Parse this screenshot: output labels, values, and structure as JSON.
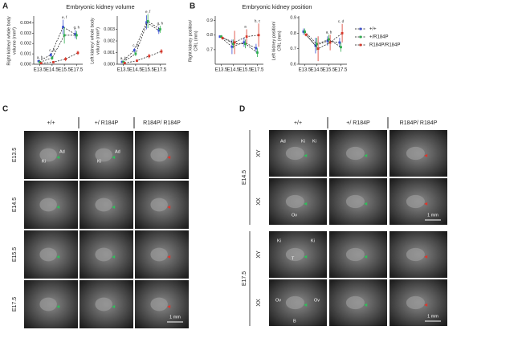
{
  "panel_labels": [
    "A",
    "B",
    "C",
    "D"
  ],
  "section_titles": [
    "Embryonic kidney volume",
    "Embryonic kidney position"
  ],
  "legend": [
    {
      "name": "+/+",
      "color": "#3b4fd1"
    },
    {
      "name": "+/R184P",
      "color": "#2fae4f"
    },
    {
      "name": "R184P/R184P",
      "color": "#d8372a"
    }
  ],
  "chart_data": [
    {
      "type": "line",
      "ylabel": [
        "Right kidney/ whole body",
        "volume (mm³)"
      ],
      "categories": [
        "E13.5",
        "E14.5",
        "E15.5",
        "E17.5"
      ],
      "ylim": [
        0,
        0.0045
      ],
      "yticks": [
        {
          "value": 0,
          "label": "0.000"
        },
        {
          "value": 0.001,
          "label": "0.001"
        },
        {
          "value": 0.002,
          "label": "0.002"
        },
        {
          "value": 0.003,
          "label": "0.003"
        },
        {
          "value": 0.004,
          "label": "0.004"
        }
      ],
      "series": [
        {
          "color": "#3b4fd1",
          "values": [
            0.0003,
            0.0009,
            0.0036,
            0.0029
          ],
          "errors": [
            0.0001,
            0.0002,
            0.0007,
            0.0004
          ]
        },
        {
          "color": "#2fae4f",
          "values": [
            0.0002,
            0.0006,
            0.0028,
            0.0028
          ],
          "errors": [
            0.0001,
            0.0002,
            0.0008,
            0.0004
          ]
        },
        {
          "color": "#d8372a",
          "values": [
            0.0001,
            0.0002,
            0.0005,
            0.0011
          ],
          "errors": [
            5e-05,
            0.0001,
            0.0002,
            0.0002
          ]
        }
      ],
      "annotations": [
        "a, b",
        "c, d",
        "e, f",
        "g, h"
      ]
    },
    {
      "type": "line",
      "ylabel": [
        "Left kidney/ whole body",
        "volume (mm³)"
      ],
      "categories": [
        "E13.5",
        "E14.5",
        "E15.5",
        "E17.5"
      ],
      "ylim": [
        0,
        0.004
      ],
      "yticks": [
        {
          "value": 0,
          "label": "0.000"
        },
        {
          "value": 0.001,
          "label": "0.001"
        },
        {
          "value": 0.002,
          "label": "0.002"
        },
        {
          "value": 0.003,
          "label": "0.003"
        }
      ],
      "series": [
        {
          "color": "#3b4fd1",
          "values": [
            0.0002,
            0.0012,
            0.0036,
            0.0029
          ],
          "errors": [
            0.0001,
            0.0002,
            0.0006,
            0.0003
          ]
        },
        {
          "color": "#2fae4f",
          "values": [
            0.0002,
            0.0009,
            0.0037,
            0.003
          ],
          "errors": [
            0.0001,
            0.0002,
            0.0006,
            0.0003
          ]
        },
        {
          "color": "#d8372a",
          "values": [
            0.0001,
            0.0003,
            0.0007,
            0.0011
          ],
          "errors": [
            5e-05,
            0.0001,
            0.0002,
            0.0002
          ]
        }
      ],
      "annotations": [
        "a, b",
        "c, d",
        "e, f",
        "g, h"
      ]
    },
    {
      "type": "line",
      "ylabel": [
        "Right kidney position/",
        "CRL (mm)"
      ],
      "categories": [
        "E13.5",
        "E14.5",
        "E15.5",
        "E17.5"
      ],
      "ylim": [
        0.6,
        0.92
      ],
      "yticks": [
        0.7,
        0.8,
        0.9
      ],
      "series": [
        {
          "color": "#3b4fd1",
          "values": [
            0.79,
            0.72,
            0.75,
            0.71
          ],
          "errors": [
            0.01,
            0.05,
            0.03,
            0.03
          ]
        },
        {
          "color": "#2fae4f",
          "values": [
            0.79,
            0.74,
            0.74,
            0.68
          ],
          "errors": [
            0.01,
            0.03,
            0.03,
            0.03
          ]
        },
        {
          "color": "#d8372a",
          "values": [
            0.78,
            0.75,
            0.79,
            0.8
          ],
          "errors": [
            0.01,
            0.08,
            0.05,
            0.08
          ]
        }
      ],
      "annotations": [
        null,
        null,
        "a",
        "b, c"
      ]
    },
    {
      "type": "line",
      "ylabel": [
        "Left kidney position/",
        "CRL (mm)"
      ],
      "categories": [
        "E13.5",
        "E14.5",
        "E15.5",
        "E17.5"
      ],
      "ylim": [
        0.6,
        0.9
      ],
      "yticks": [
        0.6,
        0.7,
        0.8,
        0.9
      ],
      "series": [
        {
          "color": "#3b4fd1",
          "values": [
            0.81,
            0.72,
            0.75,
            0.74
          ],
          "errors": [
            0.02,
            0.05,
            0.03,
            0.03
          ]
        },
        {
          "color": "#2fae4f",
          "values": [
            0.81,
            0.73,
            0.76,
            0.71
          ],
          "errors": [
            0.02,
            0.04,
            0.03,
            0.03
          ]
        },
        {
          "color": "#d8372a",
          "values": [
            0.79,
            0.7,
            0.74,
            0.8
          ],
          "errors": [
            0.01,
            0.08,
            0.05,
            0.06
          ]
        }
      ],
      "annotations": [
        null,
        null,
        "a, b",
        "c, d"
      ]
    }
  ],
  "panel_c": {
    "columns": [
      "+/+",
      "+/ R184P",
      "R184P/ R184P"
    ],
    "rows": [
      "E13.5",
      "E14.5",
      "E15.5",
      "E17.5"
    ],
    "image_labels": [
      "Ad",
      "Ki",
      "Ad",
      "Ki"
    ],
    "scale_bar": "1 mm"
  },
  "panel_d": {
    "columns": [
      "+/+",
      "+/ R184P",
      "R184P/ R184P"
    ],
    "stages": [
      "E14.5",
      "E17.5"
    ],
    "rows": [
      "XY",
      "XX",
      "XY",
      "XX"
    ],
    "image_labels": [
      "Ad",
      "Ki",
      "Ki",
      "Ov",
      "Ki",
      "Ki",
      "T",
      "Ov",
      "Ov",
      "B"
    ],
    "scale_bars": [
      "1 mm",
      "1 mm"
    ]
  }
}
